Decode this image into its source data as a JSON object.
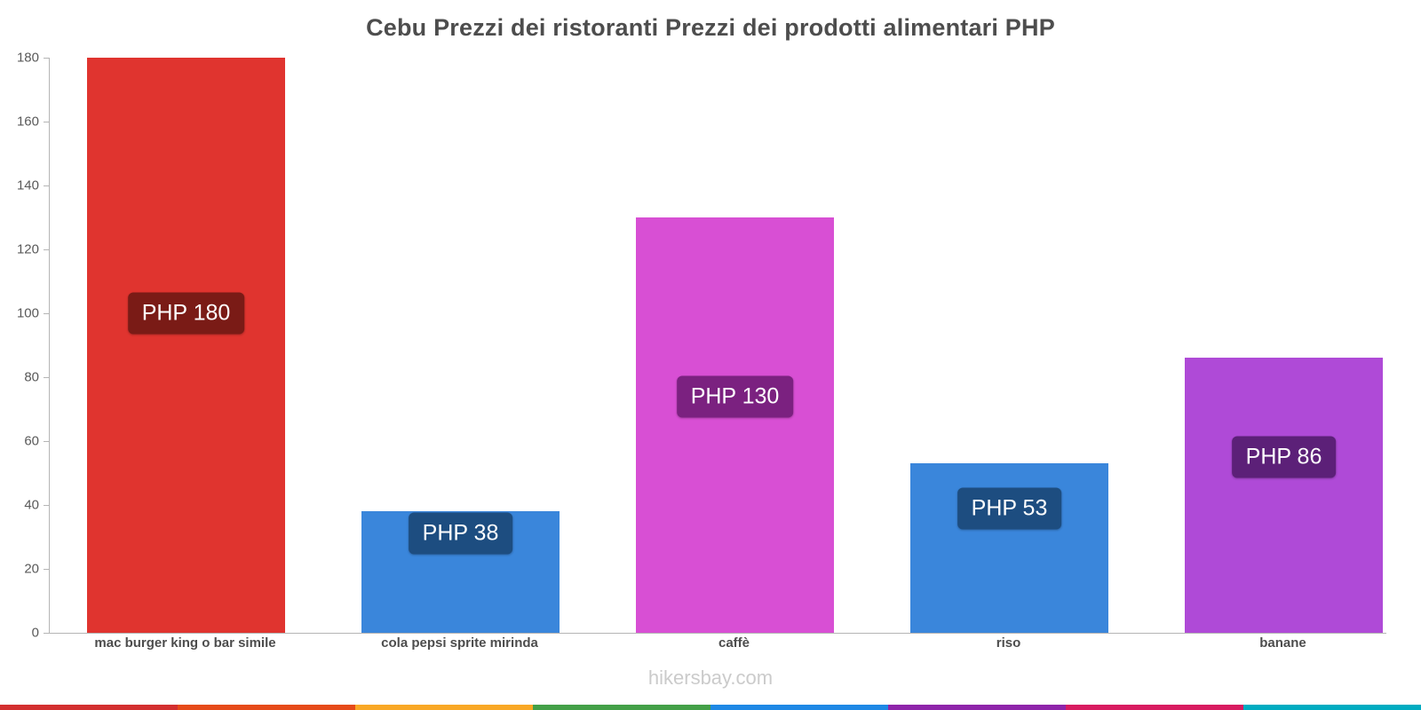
{
  "page": {
    "watermark": "hikersbay.com"
  },
  "chart_data": {
    "type": "bar",
    "title": "Cebu Prezzi dei ristoranti Prezzi dei prodotti alimentari PHP",
    "categories": [
      "mac burger king o bar simile",
      "cola pepsi sprite mirinda",
      "caffè",
      "riso",
      "banane"
    ],
    "values": [
      180,
      38,
      130,
      53,
      86
    ],
    "value_labels": [
      "PHP 180",
      "PHP 38",
      "PHP 130",
      "PHP 53",
      "PHP 86"
    ],
    "currency": "PHP",
    "ylim": [
      0,
      180
    ],
    "yticks": [
      0,
      20,
      40,
      60,
      80,
      100,
      120,
      140,
      160,
      180
    ],
    "grid": false,
    "legend": false,
    "bar_colors": [
      "#e0342f",
      "#3a86db",
      "#d84fd4",
      "#3a86db",
      "#af4ad7"
    ],
    "label_bg_colors": [
      "#7a1b16",
      "#1d4d80",
      "#7b2180",
      "#1d4d80",
      "#5c2078"
    ],
    "label_center_values": [
      100,
      31,
      74,
      39,
      55
    ],
    "footer_strip_colors": [
      "#d32f2f",
      "#e64a19",
      "#f9a825",
      "#43a047",
      "#1e88e5",
      "#8e24aa",
      "#d81b60",
      "#00acc1"
    ]
  }
}
